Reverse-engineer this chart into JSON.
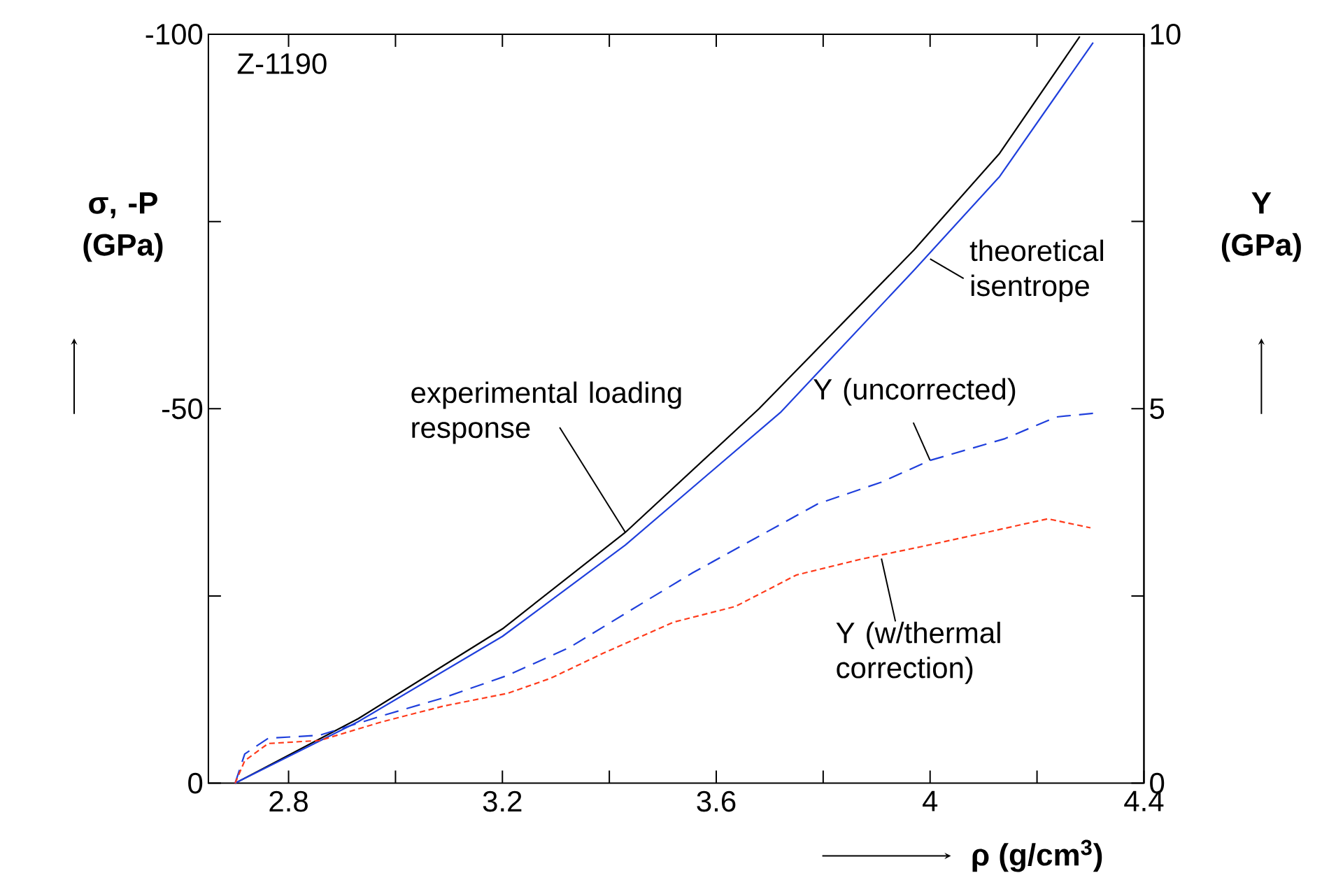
{
  "chart_data": {
    "type": "line",
    "xlabel": "ρ (g/cm$^{3}$)",
    "ylabel": "σ, -P (GPa)",
    "y2label": "Y (GPa)",
    "xlim": [
      2.65,
      4.4
    ],
    "xticks": [
      2.8,
      {
        "value": 3.0,
        "label": null
      },
      3.2,
      {
        "value": 3.4,
        "label": null
      },
      3.6,
      {
        "value": 3.8,
        "label": null
      },
      4,
      {
        "value": 4.2,
        "label": null
      },
      4.4
    ],
    "ylim": [
      0,
      -100
    ],
    "yticks": [
      0,
      {
        "value": -25,
        "label": null
      },
      -50,
      {
        "value": -75,
        "label": null
      },
      -100
    ],
    "y2lim": [
      0,
      10
    ],
    "y2ticks": [
      0,
      {
        "value": 2.5,
        "label": null
      },
      5,
      {
        "value": 7.5,
        "label": null
      },
      10
    ],
    "series": [
      {
        "color": "#000000",
        "line_style": "solid",
        "x": [
          2.7,
          2.93,
          3.2,
          3.43,
          3.68,
          3.97,
          4.13,
          4.28
        ],
        "values": [
          0,
          -8.6,
          -20.6,
          -33.5,
          -50,
          -71.2,
          -84.1,
          -99.7
        ]
      },
      {
        "color": "#1f3fdc",
        "line_style": "solid",
        "x": [
          2.7,
          2.93,
          3.2,
          3.43,
          3.72,
          3.97,
          4.13,
          4.305
        ],
        "values": [
          0,
          -8.2,
          -19.6,
          -31.8,
          -49.5,
          -68.5,
          -81,
          -98.9
        ]
      },
      {
        "color": "#1f3fdc",
        "line_style": "dashed",
        "axis": "y2",
        "x": [
          2.7,
          2.718,
          2.762,
          2.858,
          2.975,
          3.09,
          3.21,
          3.325,
          3.44,
          3.556,
          3.673,
          3.79,
          3.909,
          4.0,
          4.14,
          4.236,
          4.306
        ],
        "values": [
          0,
          0.39,
          0.6,
          0.64,
          0.9,
          1.14,
          1.44,
          1.81,
          2.31,
          2.81,
          3.27,
          3.73,
          4.02,
          4.31,
          4.6,
          4.89,
          4.94
        ]
      },
      {
        "color": "#ff3a1a",
        "line_style": "dotted",
        "axis": "y2",
        "x": [
          2.7,
          2.718,
          2.762,
          2.858,
          2.975,
          3.09,
          3.21,
          3.29,
          3.39,
          3.52,
          3.636,
          3.75,
          3.87,
          3.985,
          4.1,
          4.22,
          4.3
        ],
        "values": [
          0,
          0.3,
          0.53,
          0.57,
          0.82,
          1.03,
          1.2,
          1.4,
          1.74,
          2.15,
          2.36,
          2.78,
          2.99,
          3.16,
          3.34,
          3.53,
          3.41
        ]
      }
    ],
    "annotations": [
      "Z-1190",
      {
        "text": "experimental loading response",
        "x": 3.43,
        "y": -33.5
      },
      {
        "text": "theoretical isentrope",
        "x": 4.0,
        "y": -70
      },
      {
        "text": "Y  (uncorrected)",
        "x": 4.0,
        "y": -43.1
      },
      {
        "text": "Y (w/thermal correction)",
        "x": 3.909,
        "y": -30
      }
    ]
  }
}
